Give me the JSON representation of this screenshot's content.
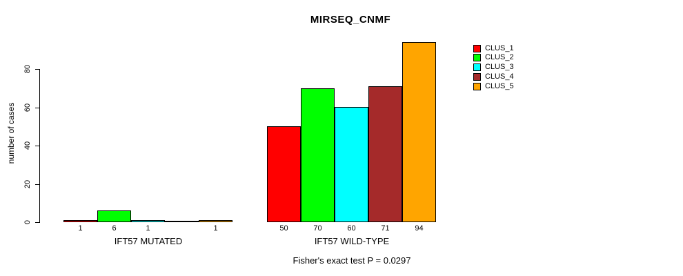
{
  "title": "MIRSEQ_CNMF",
  "caption": "Fisher's exact test P = 0.0297",
  "chart_data": {
    "type": "bar",
    "title": "MIRSEQ_CNMF",
    "xlabel": "",
    "ylabel": "number of cases",
    "ylim": [
      0,
      94
    ],
    "yticks": [
      0,
      20,
      40,
      60,
      80
    ],
    "grid": false,
    "legend_position": "right",
    "groups": [
      "IFT57 MUTATED",
      "IFT57 WILD-TYPE"
    ],
    "series": [
      {
        "name": "CLUS_1",
        "color": "#FF0000",
        "values": [
          1,
          50
        ]
      },
      {
        "name": "CLUS_2",
        "color": "#00FF00",
        "values": [
          6,
          70
        ]
      },
      {
        "name": "CLUS_3",
        "color": "#00FFFF",
        "values": [
          1,
          60
        ]
      },
      {
        "name": "CLUS_4",
        "color": "#A52A2A",
        "values": [
          0,
          71
        ]
      },
      {
        "name": "CLUS_5",
        "color": "#FFA500",
        "values": [
          1,
          94
        ]
      }
    ],
    "bar_labels": [
      [
        "1",
        "6",
        "1",
        "",
        "1"
      ],
      [
        "50",
        "70",
        "60",
        "71",
        "94"
      ]
    ],
    "annotation": "Fisher's exact test P = 0.0297"
  }
}
